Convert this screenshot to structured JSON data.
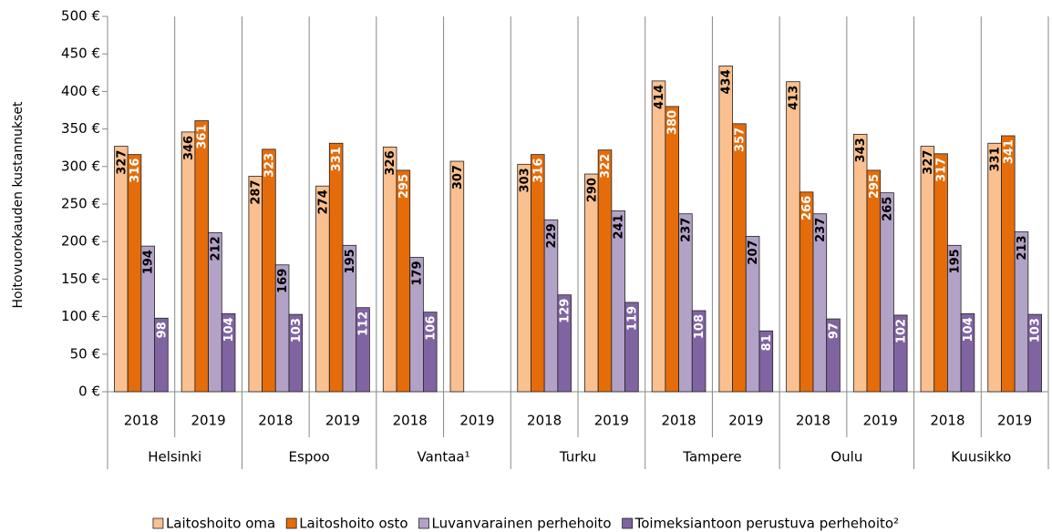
{
  "chart_data": {
    "type": "bar",
    "y_axis_label": "Hoitovuorokauden kustannukset",
    "categories": [
      "2018",
      "2019",
      "2018",
      "2019",
      "2018",
      "2019",
      "2018",
      "2019",
      "2018",
      "2019",
      "2018",
      "2019",
      "2018",
      "2019"
    ],
    "category_groups": [
      "Helsinki",
      "Espoo",
      "Vantaa¹",
      "Turku",
      "Tampere",
      "Oulu",
      "Kuusikko"
    ],
    "series": [
      {
        "name": "Laitoshoito oma",
        "color": "#fac090",
        "label_color": "#000000",
        "values": [
          327,
          346,
          287,
          274,
          326,
          307,
          303,
          290,
          414,
          434,
          413,
          343,
          327,
          331
        ]
      },
      {
        "name": "Laitoshoito osto",
        "color": "#e46c0a",
        "label_color": "#ffffff",
        "values": [
          316,
          361,
          323,
          331,
          295,
          null,
          316,
          322,
          380,
          357,
          266,
          295,
          317,
          341
        ]
      },
      {
        "name": "Luvanvarainen perhehoito",
        "color": "#b3a2c7",
        "label_color": "#000000",
        "values": [
          194,
          212,
          169,
          195,
          179,
          null,
          229,
          241,
          237,
          207,
          237,
          265,
          195,
          213
        ]
      },
      {
        "name": "Toimeksiantoon perustuva perhehoito²",
        "color": "#8064a2",
        "label_color": "#ffffff",
        "values": [
          98,
          104,
          103,
          112,
          106,
          null,
          129,
          119,
          108,
          81,
          97,
          102,
          104,
          103
        ]
      }
    ],
    "ylim": [
      0,
      500
    ],
    "yticks": [
      {
        "value": 0,
        "label": "0 €"
      },
      {
        "value": 50,
        "label": "50 €"
      },
      {
        "value": 100,
        "label": "100 €"
      },
      {
        "value": 150,
        "label": "150 €"
      },
      {
        "value": 200,
        "label": "200 €"
      },
      {
        "value": 250,
        "label": "250 €"
      },
      {
        "value": 300,
        "label": "300 €"
      },
      {
        "value": 350,
        "label": "350 €"
      },
      {
        "value": 400,
        "label": "400 €"
      },
      {
        "value": 450,
        "label": "450 €"
      },
      {
        "value": 500,
        "label": "500 €"
      }
    ],
    "legend": "bottom"
  }
}
